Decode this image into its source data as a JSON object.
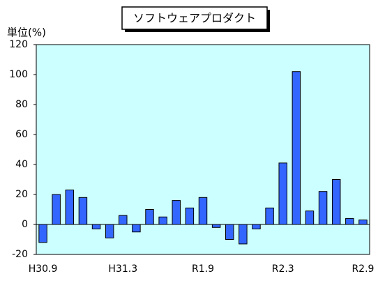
{
  "chart_data": {
    "type": "bar",
    "title": "ソフトウェアプロダクト",
    "y_label": "単位(%)",
    "categories": [
      "H30.9",
      null,
      null,
      null,
      null,
      null,
      "H31.3",
      null,
      null,
      null,
      null,
      null,
      "R1.9",
      null,
      null,
      null,
      null,
      null,
      "R2.3",
      null,
      null,
      null,
      null,
      null,
      "R2.9"
    ],
    "values": [
      -12,
      20,
      23,
      18,
      -3,
      -9,
      6,
      -5,
      10,
      5,
      16,
      11,
      18,
      -2,
      -10,
      -13,
      -3,
      11,
      41,
      102,
      9,
      22,
      30,
      4,
      3
    ],
    "color": "#3366ff",
    "ylim": [
      -20,
      120
    ],
    "yticks": [
      -20,
      0,
      20,
      40,
      60,
      80,
      100,
      120
    ],
    "grid": false
  }
}
